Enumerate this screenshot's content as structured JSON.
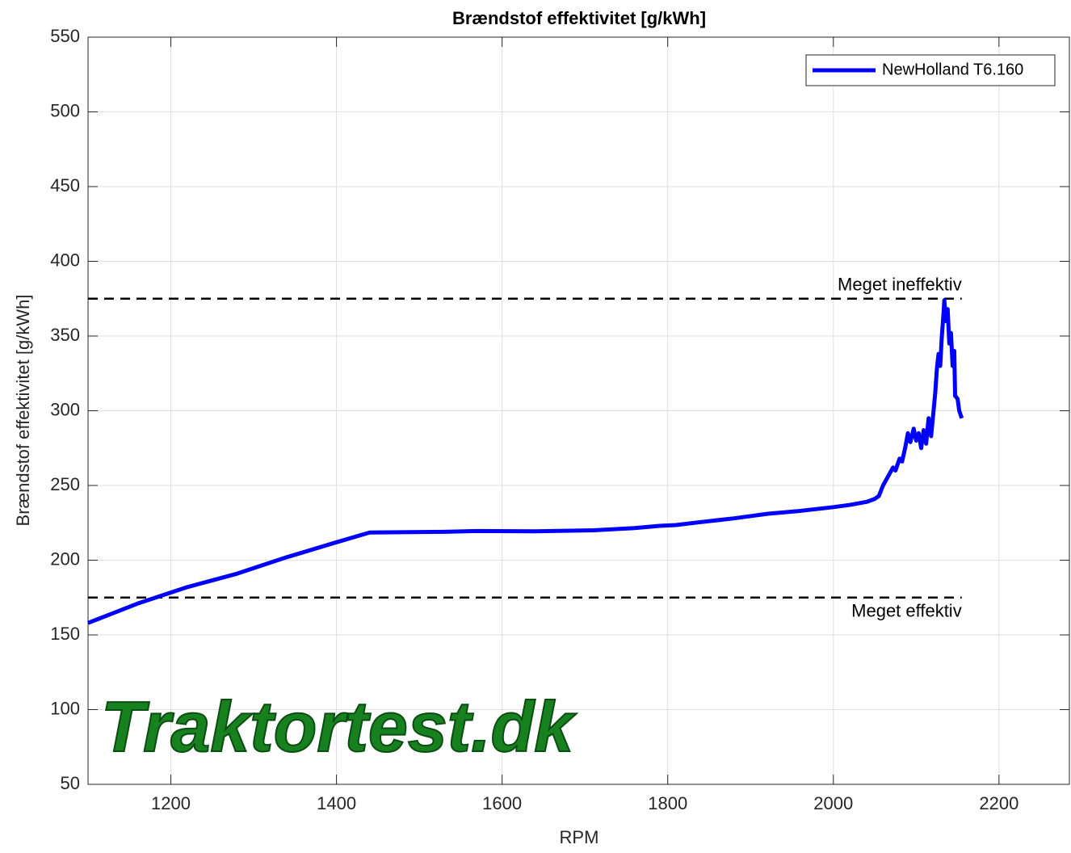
{
  "chart_data": {
    "type": "line",
    "title": "Brændstof effektivitet [g/kWh]",
    "xlabel": "RPM",
    "ylabel": "Brændstof effektivitet [g/kWh]",
    "x": [
      1100,
      1160,
      1220,
      1280,
      1340,
      1400,
      1440,
      1530,
      1570,
      1640,
      1710,
      1760,
      1790,
      1810,
      1840,
      1880,
      1900,
      1920,
      1960,
      2000,
      2020,
      2040,
      2050,
      2055,
      2060,
      2068,
      2072,
      2075,
      2080,
      2083,
      2087,
      2090,
      2093,
      2097,
      2100,
      2103,
      2106,
      2109,
      2112,
      2115,
      2118,
      2121,
      2123,
      2125,
      2127,
      2129,
      2131,
      2133,
      2134,
      2136,
      2138,
      2140,
      2142,
      2144,
      2146,
      2147,
      2150,
      2152,
      2155
    ],
    "series": [
      {
        "name": "NewHolland T6.160",
        "color": "#0000ff",
        "values": [
          158,
          171,
          182,
          191,
          202,
          212,
          218.5,
          219,
          219.5,
          219.3,
          220,
          221.5,
          223,
          223.5,
          225.5,
          228,
          229.5,
          231,
          233,
          235.5,
          237,
          239,
          241,
          243,
          250,
          258,
          262,
          260,
          268,
          266,
          276,
          285,
          279,
          288,
          280,
          285,
          275,
          287,
          278,
          295,
          283,
          300,
          312,
          328,
          338,
          330,
          350,
          365,
          374,
          360,
          368,
          345,
          352,
          330,
          340,
          310,
          308,
          300,
          295
        ]
      }
    ],
    "reference_lines": [
      {
        "value": 375,
        "label": "Meget ineffektiv"
      },
      {
        "value": 175,
        "label": "Meget effektiv"
      }
    ],
    "watermark": "Traktortest.dk",
    "xlim": [
      1100,
      2285
    ],
    "ylim": [
      50,
      550
    ],
    "xticks": [
      1200,
      1400,
      1600,
      1800,
      2000,
      2200
    ],
    "yticks": [
      50,
      100,
      150,
      200,
      250,
      300,
      350,
      400,
      450,
      500,
      550
    ],
    "grid": true,
    "legend": "upper right"
  }
}
